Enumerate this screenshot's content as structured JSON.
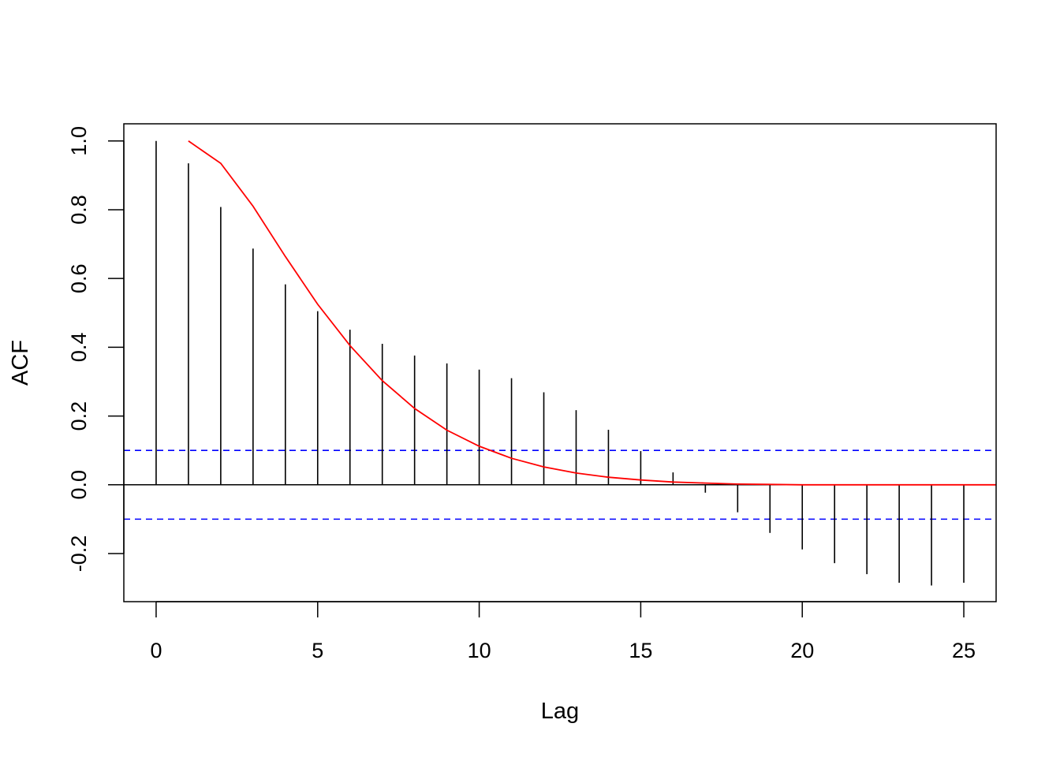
{
  "chart_data": {
    "type": "bar",
    "title": "",
    "xlabel": "Lag",
    "ylabel": "ACF",
    "xlim": [
      -1,
      26
    ],
    "ylim": [
      -0.34,
      1.05
    ],
    "x_ticks": [
      "0",
      "5",
      "10",
      "15",
      "20",
      "25"
    ],
    "y_ticks": [
      "-0.2",
      "0.0",
      "0.2",
      "0.4",
      "0.6",
      "0.8",
      "1.0"
    ],
    "grid": false,
    "legend": "none",
    "series": [
      {
        "kind": "acf-spikes",
        "color": "#000000",
        "x": [
          0,
          1,
          2,
          3,
          4,
          5,
          6,
          7,
          8,
          9,
          10,
          11,
          12,
          13,
          14,
          15,
          16,
          17,
          18,
          19,
          20,
          21,
          22,
          23,
          24,
          25
        ],
        "values": [
          1.0,
          0.935,
          0.808,
          0.687,
          0.583,
          0.505,
          0.451,
          0.41,
          0.376,
          0.353,
          0.335,
          0.31,
          0.269,
          0.217,
          0.16,
          0.098,
          0.036,
          -0.023,
          -0.08,
          -0.14,
          -0.188,
          -0.228,
          -0.26,
          -0.285,
          -0.293,
          -0.285
        ]
      },
      {
        "kind": "line",
        "color": "#ff0000",
        "x": [
          1,
          2,
          3,
          4,
          5,
          6,
          7,
          8,
          9,
          10,
          11,
          12,
          13,
          14,
          15,
          16,
          17,
          18,
          19,
          20,
          21,
          22,
          23,
          24,
          25,
          26
        ],
        "values": [
          1.0,
          0.935,
          0.81,
          0.664,
          0.525,
          0.405,
          0.303,
          0.222,
          0.159,
          0.112,
          0.077,
          0.052,
          0.034,
          0.022,
          0.014,
          0.008,
          0.005,
          0.002,
          0.001,
          0.0,
          0.0,
          0.0,
          0.0,
          0.0,
          0.0,
          0.0
        ]
      }
    ],
    "reference_lines": [
      {
        "y": 0,
        "color": "#000000",
        "style": "solid"
      },
      {
        "y": 0.1,
        "color": "#0000ff",
        "style": "dashed"
      },
      {
        "y": -0.1,
        "color": "#0000ff",
        "style": "dashed"
      }
    ]
  }
}
